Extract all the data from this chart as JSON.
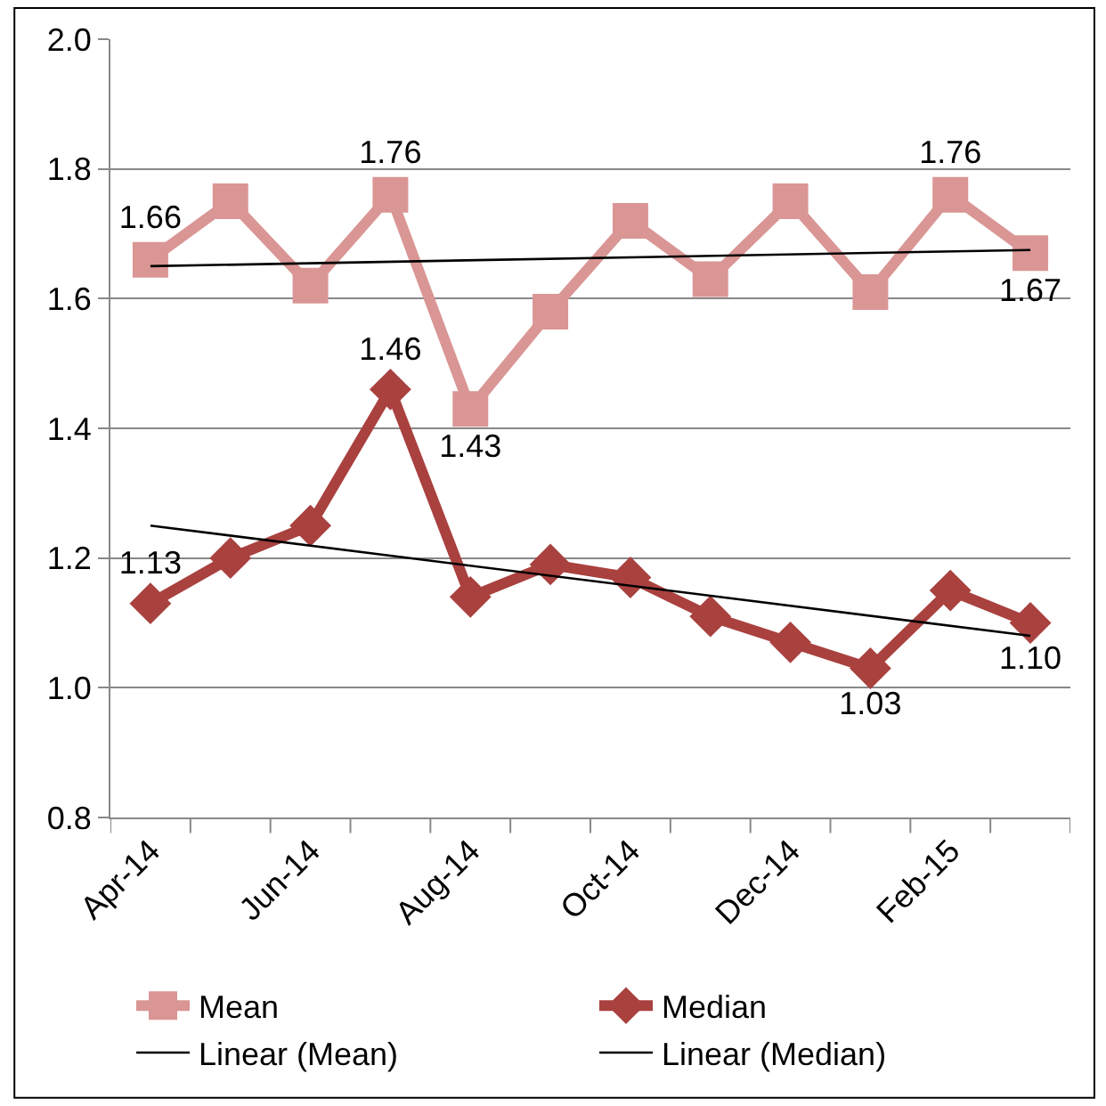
{
  "chart_data": {
    "type": "line",
    "categories": [
      "Apr-14",
      null,
      "Jun-14",
      null,
      "Aug-14",
      null,
      "Oct-14",
      null,
      "Dec-14",
      null,
      "Feb-15",
      null
    ],
    "series": [
      {
        "name": "Mean",
        "color": "#d99694",
        "marker": "square",
        "values": [
          1.66,
          1.75,
          1.62,
          1.76,
          1.43,
          1.58,
          1.72,
          1.63,
          1.75,
          1.61,
          1.76,
          1.67
        ],
        "value_labels": [
          "1.66",
          null,
          null,
          "1.76",
          "1.43",
          null,
          null,
          null,
          null,
          null,
          "1.76",
          "1.67"
        ]
      },
      {
        "name": "Median",
        "color": "#a9413f",
        "marker": "diamond",
        "values": [
          1.13,
          1.2,
          1.25,
          1.46,
          1.14,
          1.19,
          1.17,
          1.11,
          1.07,
          1.03,
          1.15,
          1.1
        ],
        "value_labels": [
          "1.13",
          null,
          null,
          "1.46",
          null,
          null,
          null,
          null,
          null,
          "1.03",
          null,
          "1.10"
        ]
      },
      {
        "name": "Linear (Mean)",
        "color": "#000000",
        "marker": "none",
        "values": [
          1.65,
          null,
          null,
          null,
          null,
          null,
          null,
          null,
          null,
          null,
          null,
          1.675
        ]
      },
      {
        "name": "Linear (Median)",
        "color": "#000000",
        "marker": "none",
        "values": [
          1.25,
          null,
          null,
          null,
          null,
          null,
          null,
          null,
          null,
          null,
          null,
          1.08
        ]
      }
    ],
    "ylim": [
      0.8,
      2.0
    ],
    "yticks": [
      {
        "value": 0.8,
        "label": "0.8"
      },
      {
        "value": 1.0,
        "label": "1.0"
      },
      {
        "value": 1.2,
        "label": "1.2"
      },
      {
        "value": 1.4,
        "label": "1.4"
      },
      {
        "value": 1.6,
        "label": "1.6"
      },
      {
        "value": 1.8,
        "label": "1.8"
      },
      {
        "value": 2.0,
        "label": "2.0"
      }
    ],
    "grid": "y",
    "legend": "bottom"
  }
}
